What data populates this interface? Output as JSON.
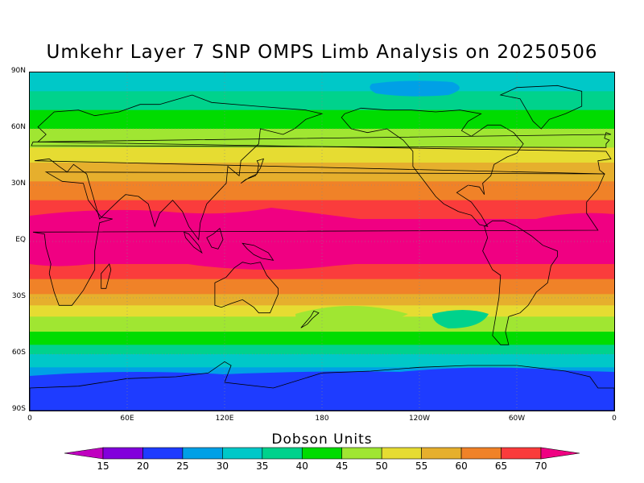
{
  "title": "Umkehr Layer 7 SNP OMPS Limb Analysis on 20250506",
  "colorbar": {
    "title": "Dobson Units",
    "levels": [
      "15",
      "20",
      "25",
      "30",
      "35",
      "40",
      "45",
      "50",
      "55",
      "60",
      "65",
      "70"
    ],
    "colors": [
      "#c000c0",
      "#8200dc",
      "#1e3cff",
      "#00a0e6",
      "#00c8c8",
      "#00d28c",
      "#00dc00",
      "#a0e632",
      "#e6dc32",
      "#e6af2d",
      "#f08228",
      "#fa3c3c",
      "#f00082"
    ]
  },
  "axes": {
    "lat_labels": [
      "90N",
      "60N",
      "30N",
      "EQ",
      "30S",
      "60S",
      "90S"
    ],
    "lon_labels": [
      "0",
      "60E",
      "120E",
      "180",
      "120W",
      "60W",
      "0"
    ]
  },
  "map": {
    "projection": "equirectangular",
    "lon_range": [
      0,
      360
    ],
    "lat_range": [
      -90,
      90
    ],
    "gridlines": "dotted",
    "field_bands_DU": [
      {
        "lat_from": 90,
        "lat_to": 80,
        "value": 30
      },
      {
        "lat_from": 80,
        "lat_to": 70,
        "value": 35
      },
      {
        "lat_from": 70,
        "lat_to": 60,
        "value": 40
      },
      {
        "lat_from": 60,
        "lat_to": 50,
        "value": 45
      },
      {
        "lat_from": 50,
        "lat_to": 42,
        "value": 50
      },
      {
        "lat_from": 42,
        "lat_to": 32,
        "value": 55
      },
      {
        "lat_from": 32,
        "lat_to": 22,
        "value": 60
      },
      {
        "lat_from": 22,
        "lat_to": 12,
        "value": 65
      },
      {
        "lat_from": 12,
        "lat_to": -12,
        "value": 70
      },
      {
        "lat_from": -12,
        "lat_to": -20,
        "value": 65
      },
      {
        "lat_from": -20,
        "lat_to": -28,
        "value": 60
      },
      {
        "lat_from": -28,
        "lat_to": -34,
        "value": 55
      },
      {
        "lat_from": -34,
        "lat_to": -40,
        "value": 50
      },
      {
        "lat_from": -40,
        "lat_to": -48,
        "value": 45
      },
      {
        "lat_from": -48,
        "lat_to": -55,
        "value": 40
      },
      {
        "lat_from": -55,
        "lat_to": -60,
        "value": 35
      },
      {
        "lat_from": -60,
        "lat_to": -67,
        "value": 30
      },
      {
        "lat_from": -67,
        "lat_to": -90,
        "value": 25
      }
    ]
  }
}
